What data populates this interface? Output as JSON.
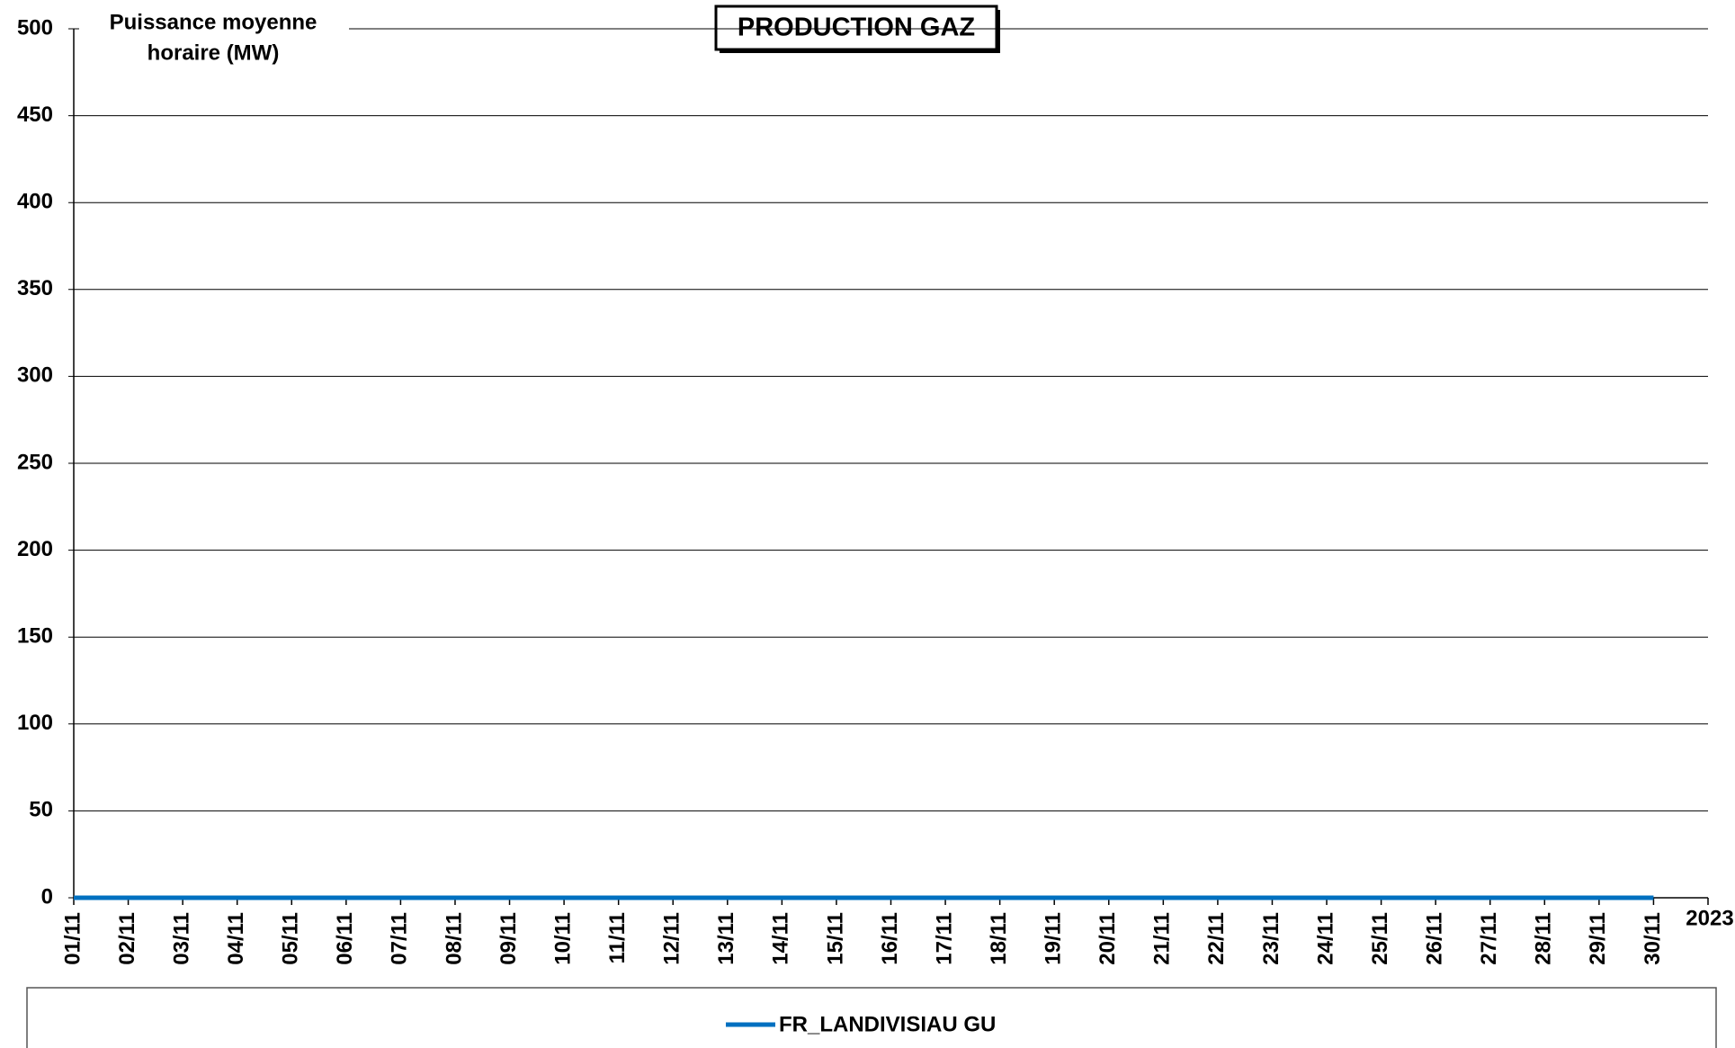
{
  "chart_data": {
    "type": "line",
    "title": "PRODUCTION GAZ",
    "y_label": [
      "Puissance moyenne",
      "horaire (MW)"
    ],
    "x_label": "2023",
    "categories": [
      "01/11",
      "02/11",
      "03/11",
      "04/11",
      "05/11",
      "06/11",
      "07/11",
      "08/11",
      "09/11",
      "10/11",
      "11/11",
      "12/11",
      "13/11",
      "14/11",
      "15/11",
      "16/11",
      "17/11",
      "18/11",
      "19/11",
      "20/11",
      "21/11",
      "22/11",
      "23/11",
      "24/11",
      "25/11",
      "26/11",
      "27/11",
      "28/11",
      "29/11",
      "30/11"
    ],
    "series": [
      {
        "name": "FR_LANDIVISIAU GU",
        "color": "#0070c0",
        "values": [
          0,
          0,
          0,
          0,
          0,
          0,
          0,
          0,
          0,
          0,
          0,
          0,
          0,
          0,
          0,
          0,
          0,
          0,
          0,
          0,
          0,
          0,
          0,
          0,
          0,
          0,
          0,
          0,
          0,
          0
        ]
      }
    ],
    "ylim": [
      0,
      500
    ],
    "yticks": [
      0,
      50,
      100,
      150,
      200,
      250,
      300,
      350,
      400,
      450,
      500
    ],
    "grid": true
  }
}
